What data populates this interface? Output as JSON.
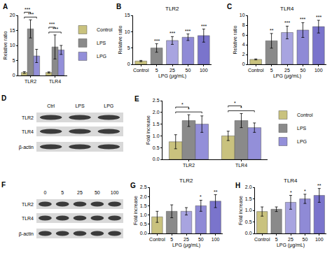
{
  "chart_data": [
    {
      "panel": "A",
      "type": "bar",
      "y_label": "Relative ratio",
      "categories": [
        "TLR2",
        "TLR4"
      ],
      "series": [
        {
          "name": "Control",
          "color": "#c9c27e",
          "values": [
            1,
            1
          ],
          "errors": [
            0.3,
            0.2
          ]
        },
        {
          "name": "LPS",
          "color": "#8a8a8a",
          "values": [
            15.5,
            9.5
          ],
          "errors": [
            3,
            4
          ]
        },
        {
          "name": "LPG",
          "color": "#938fd9",
          "values": [
            6.5,
            8.5
          ],
          "errors": [
            2.2,
            1.5
          ]
        }
      ],
      "ylim": [
        0,
        20
      ],
      "yticks": [
        0,
        5,
        10,
        15,
        20
      ],
      "grid": false,
      "legend": "right",
      "comparisons": [
        {
          "category": "TLR2",
          "from": "Control",
          "to": "LPG",
          "text": "***"
        },
        {
          "category": "TLR2",
          "from": "Control",
          "to": "LPS",
          "text": "***"
        },
        {
          "category": "TLR4",
          "from": "Control",
          "to": "LPG",
          "text": "***"
        },
        {
          "category": "TLR4",
          "from": "Control",
          "to": "LPS",
          "text": "***"
        }
      ]
    },
    {
      "panel": "B",
      "type": "bar",
      "title": "TLR2",
      "x_label": "LPG (μg/mL)",
      "y_label": "Relative ratio",
      "categories": [
        "Control",
        "5",
        "25",
        "50",
        "100"
      ],
      "values": [
        1,
        5,
        7.3,
        8.3,
        8.8
      ],
      "errors": [
        0.2,
        1.3,
        1.2,
        1,
        2
      ],
      "colors": [
        "#c9c27e",
        "#8a8a8a",
        "#a8a4e0",
        "#8f8ad6",
        "#7a74cc"
      ],
      "significance": [
        null,
        "***",
        "***",
        "***",
        "***"
      ],
      "ylim": [
        0,
        15
      ],
      "yticks": [
        0,
        5,
        10,
        15
      ],
      "grid": false
    },
    {
      "panel": "C",
      "type": "bar",
      "title": "TLR4",
      "x_label": "LPG (μg/mL)",
      "y_label": "Relative ratio",
      "categories": [
        "Control",
        "5",
        "25",
        "50",
        "100"
      ],
      "values": [
        1,
        4.8,
        6.5,
        7,
        7.7
      ],
      "errors": [
        0.1,
        1.5,
        1.3,
        1.5,
        1.3
      ],
      "colors": [
        "#c9c27e",
        "#8a8a8a",
        "#a8a4e0",
        "#8f8ad6",
        "#7a74cc"
      ],
      "significance": [
        null,
        "**",
        "***",
        "***",
        "***"
      ],
      "ylim": [
        0,
        10
      ],
      "yticks": [
        0,
        2,
        4,
        6,
        8,
        10
      ],
      "grid": false
    },
    {
      "panel": "E",
      "type": "bar",
      "y_label": "Fold increase",
      "categories": [
        "TLR2",
        "TLR4"
      ],
      "series": [
        {
          "name": "Control",
          "color": "#c9c27e",
          "values": [
            0.75,
            1.0
          ],
          "errors": [
            0.3,
            0.2
          ]
        },
        {
          "name": "LPS",
          "color": "#8a8a8a",
          "values": [
            1.65,
            1.65
          ],
          "errors": [
            0.25,
            0.3
          ]
        },
        {
          "name": "LPG",
          "color": "#938fd9",
          "values": [
            1.5,
            1.35
          ],
          "errors": [
            0.35,
            0.2
          ]
        }
      ],
      "ylim": [
        0,
        2.5
      ],
      "yticks": [
        {
          "value": 0,
          "label": "0.0"
        },
        {
          "value": 0.5,
          "label": "0.5"
        },
        {
          "value": 1,
          "label": "1.0"
        },
        {
          "value": 1.5,
          "label": "1.5"
        },
        {
          "value": 2,
          "label": "2.0"
        },
        {
          "value": 2.5,
          "label": "2.5"
        }
      ],
      "grid": false,
      "legend": "right",
      "comparisons": [
        {
          "category": "TLR2",
          "from": "Control",
          "to": "LPG",
          "text": "*"
        },
        {
          "category": "TLR2",
          "from": "Control",
          "to": "LPS",
          "text": "*"
        },
        {
          "category": "TLR4",
          "from": "Control",
          "to": "LPG",
          "text": "*"
        },
        {
          "category": "TLR4",
          "from": "Control",
          "to": "LPS",
          "text": "*"
        }
      ]
    },
    {
      "panel": "G",
      "type": "bar",
      "title": "TLR2",
      "x_label": "LPG (μg/mL)",
      "y_label": "Fold increase",
      "categories": [
        "Control",
        "5",
        "25",
        "50",
        "100"
      ],
      "values": [
        0.9,
        1.2,
        1.2,
        1.5,
        1.75
      ],
      "errors": [
        0.3,
        0.35,
        0.2,
        0.3,
        0.35
      ],
      "colors": [
        "#c9c27e",
        "#8a8a8a",
        "#a8a4e0",
        "#8f8ad6",
        "#7a74cc"
      ],
      "significance": [
        null,
        null,
        null,
        "*",
        "**"
      ],
      "ylim": [
        0,
        2.5
      ],
      "yticks": [
        {
          "value": 0,
          "label": "0.0"
        },
        {
          "value": 0.5,
          "label": "0.5"
        },
        {
          "value": 1,
          "label": "1.0"
        },
        {
          "value": 1.5,
          "label": "1.5"
        },
        {
          "value": 2,
          "label": "2.0"
        },
        {
          "value": 2.5,
          "label": "2.5"
        }
      ],
      "grid": false
    },
    {
      "panel": "H",
      "type": "bar",
      "title": "TLR4",
      "x_label": "LPG (μg/mL)",
      "y_label": "Fold increase",
      "categories": [
        "Control",
        "5",
        "25",
        "50",
        "100"
      ],
      "values": [
        0.95,
        1.05,
        1.35,
        1.5,
        1.65
      ],
      "errors": [
        0.2,
        0.1,
        0.3,
        0.2,
        0.3
      ],
      "colors": [
        "#c9c27e",
        "#8a8a8a",
        "#a8a4e0",
        "#8f8ad6",
        "#7a74cc"
      ],
      "significance": [
        null,
        null,
        "*",
        "*",
        "**"
      ],
      "ylim": [
        0,
        2
      ],
      "yticks": [
        {
          "value": 0,
          "label": "0.0"
        },
        {
          "value": 0.5,
          "label": "0.5"
        },
        {
          "value": 1,
          "label": "1.0"
        },
        {
          "value": 1.5,
          "label": "1.5"
        },
        {
          "value": 2,
          "label": "2.0"
        }
      ],
      "grid": false
    }
  ],
  "blots": [
    {
      "panel": "D",
      "columns": [
        "Ctrl",
        "LPS",
        "LPG"
      ],
      "rows": [
        "TLR2",
        "TLR4",
        "β-actin"
      ]
    },
    {
      "panel": "F",
      "columns": [
        "0",
        "5",
        "25",
        "50",
        "100"
      ],
      "rows": [
        "TLR2",
        "TLR4",
        "β-actin"
      ]
    }
  ]
}
